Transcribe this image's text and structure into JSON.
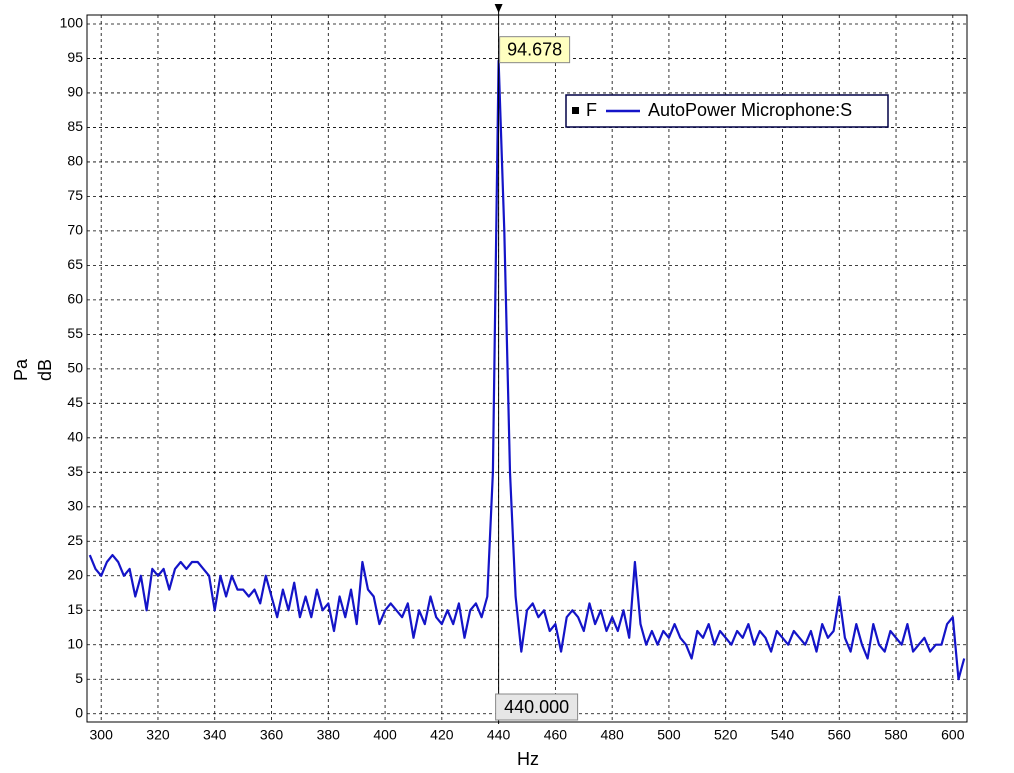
{
  "chart_data": {
    "type": "line",
    "xlabel": "Hz",
    "ylabel": "dB",
    "yunit": "Pa",
    "xlim": [
      295,
      605
    ],
    "ylim": [
      -1.2,
      101.3
    ],
    "xticks": [
      300,
      320,
      340,
      360,
      380,
      400,
      420,
      440,
      460,
      480,
      500,
      520,
      540,
      560,
      580,
      600
    ],
    "yticks": [
      0,
      5,
      10,
      15,
      20,
      25,
      30,
      35,
      40,
      45,
      50,
      55,
      60,
      65,
      70,
      75,
      80,
      85,
      90,
      95,
      100
    ],
    "grid": true,
    "legend": "upper right",
    "legend_marker": "F",
    "cursor": {
      "value": 440,
      "label": "440.000"
    },
    "peak": {
      "value": 94.678,
      "label": "94.678"
    },
    "x": [
      296,
      298,
      300,
      302,
      304,
      306,
      308,
      310,
      312,
      314,
      316,
      318,
      320,
      322,
      324,
      326,
      328,
      330,
      332,
      334,
      336,
      338,
      340,
      342,
      344,
      346,
      348,
      350,
      352,
      354,
      356,
      358,
      360,
      362,
      364,
      366,
      368,
      370,
      372,
      374,
      376,
      378,
      380,
      382,
      384,
      386,
      388,
      390,
      392,
      394,
      396,
      398,
      400,
      402,
      404,
      406,
      408,
      410,
      412,
      414,
      416,
      418,
      420,
      422,
      424,
      426,
      428,
      430,
      432,
      434,
      436,
      438,
      440,
      442,
      444,
      446,
      448,
      450,
      452,
      454,
      456,
      458,
      460,
      462,
      464,
      466,
      468,
      470,
      472,
      474,
      476,
      478,
      480,
      482,
      484,
      486,
      488,
      490,
      492,
      494,
      496,
      498,
      500,
      502,
      504,
      506,
      508,
      510,
      512,
      514,
      516,
      518,
      520,
      522,
      524,
      526,
      528,
      530,
      532,
      534,
      536,
      538,
      540,
      542,
      544,
      546,
      548,
      550,
      552,
      554,
      556,
      558,
      560,
      562,
      564,
      566,
      568,
      570,
      572,
      574,
      576,
      578,
      580,
      582,
      584,
      586,
      588,
      590,
      592,
      594,
      596,
      598,
      600,
      602,
      604
    ],
    "series": [
      {
        "name": "AutoPower Microphone:S",
        "color": "#1414c8",
        "values": [
          23,
          21,
          20,
          22,
          23,
          22,
          20,
          21,
          17,
          20,
          15,
          21,
          20,
          21,
          18,
          21,
          22,
          21,
          22,
          22,
          21,
          20,
          15,
          20,
          17,
          20,
          18,
          18,
          17,
          18,
          16,
          20,
          17,
          14,
          18,
          15,
          19,
          14,
          17,
          14,
          18,
          15,
          16,
          12,
          17,
          14,
          18,
          13,
          22,
          18,
          17,
          13,
          15,
          16,
          15,
          14,
          16,
          11,
          15,
          13,
          17,
          14,
          13,
          15,
          13,
          16,
          11,
          15,
          16,
          14,
          17,
          35,
          94.678,
          70,
          35,
          17,
          9,
          15,
          16,
          14,
          15,
          12,
          13,
          9,
          14,
          15,
          14,
          12,
          16,
          13,
          15,
          12,
          14,
          12,
          15,
          11,
          22,
          13,
          10,
          12,
          10,
          12,
          11,
          13,
          11,
          10,
          8,
          12,
          11,
          13,
          10,
          12,
          11,
          10,
          12,
          11,
          13,
          10,
          12,
          11,
          9,
          12,
          11,
          10,
          12,
          11,
          10,
          12,
          9,
          13,
          11,
          12,
          17,
          11,
          9,
          13,
          10,
          8,
          13,
          10,
          9,
          12,
          11,
          10,
          13,
          9,
          10,
          11,
          9,
          10,
          10,
          13,
          14,
          5,
          8
        ]
      }
    ]
  }
}
